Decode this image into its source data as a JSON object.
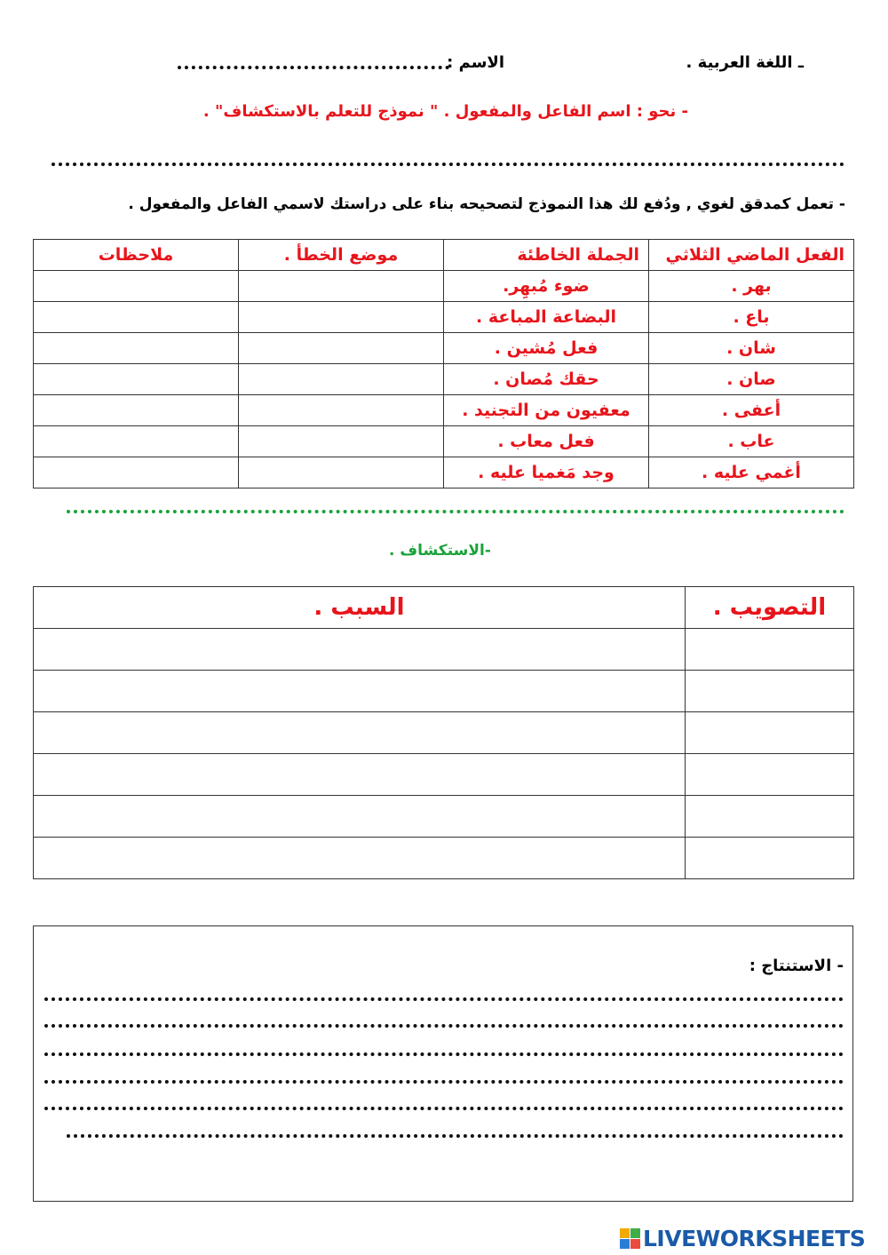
{
  "header": {
    "subject": "ـ اللغة العربية  .",
    "name_label": "الاسم :",
    "lesson_title": "- نحو : اسم الفاعل والمفعول  . \" نموذج للتعلم بالاستكشاف\" .",
    "instruction": "- تعمل كمدقق لغوي , ودُفع لك هذا النموذج لتصحيحه بناء على دراستك لاسمي الفاعل والمفعول  ."
  },
  "table1": {
    "headers": [
      "الفعل الماضي الثلاثي",
      "الجملة الخاطئة",
      "موضع الخطأ .",
      "ملاحظات"
    ],
    "rows": [
      [
        "بهر  .",
        "ضوء مُبهِر.",
        "",
        ""
      ],
      [
        "باع .",
        "البضاعة المباعة .",
        "",
        ""
      ],
      [
        "شان .",
        "فعل مُشين .",
        "",
        ""
      ],
      [
        "صان .",
        "حقك مُصان .",
        "",
        ""
      ],
      [
        "أعفى .",
        "معفيون من التجنيد .",
        "",
        ""
      ],
      [
        "عاب .",
        "فعل معاب .",
        "",
        ""
      ],
      [
        "أغمي عليه .",
        "وجد مَغميا عليه .",
        "",
        ""
      ]
    ]
  },
  "section2": {
    "title": "-الاستكشاف ."
  },
  "table2": {
    "headers": [
      "التصويب .",
      "السبب ."
    ],
    "row_count": 6
  },
  "conclusion": {
    "label": "- الاستنتاج :"
  },
  "logo": {
    "text": "LIVEWORKSHEETS"
  },
  "colors": {
    "accent_red": "#e8141b",
    "green": "#1aa33a",
    "text": "#111111"
  }
}
